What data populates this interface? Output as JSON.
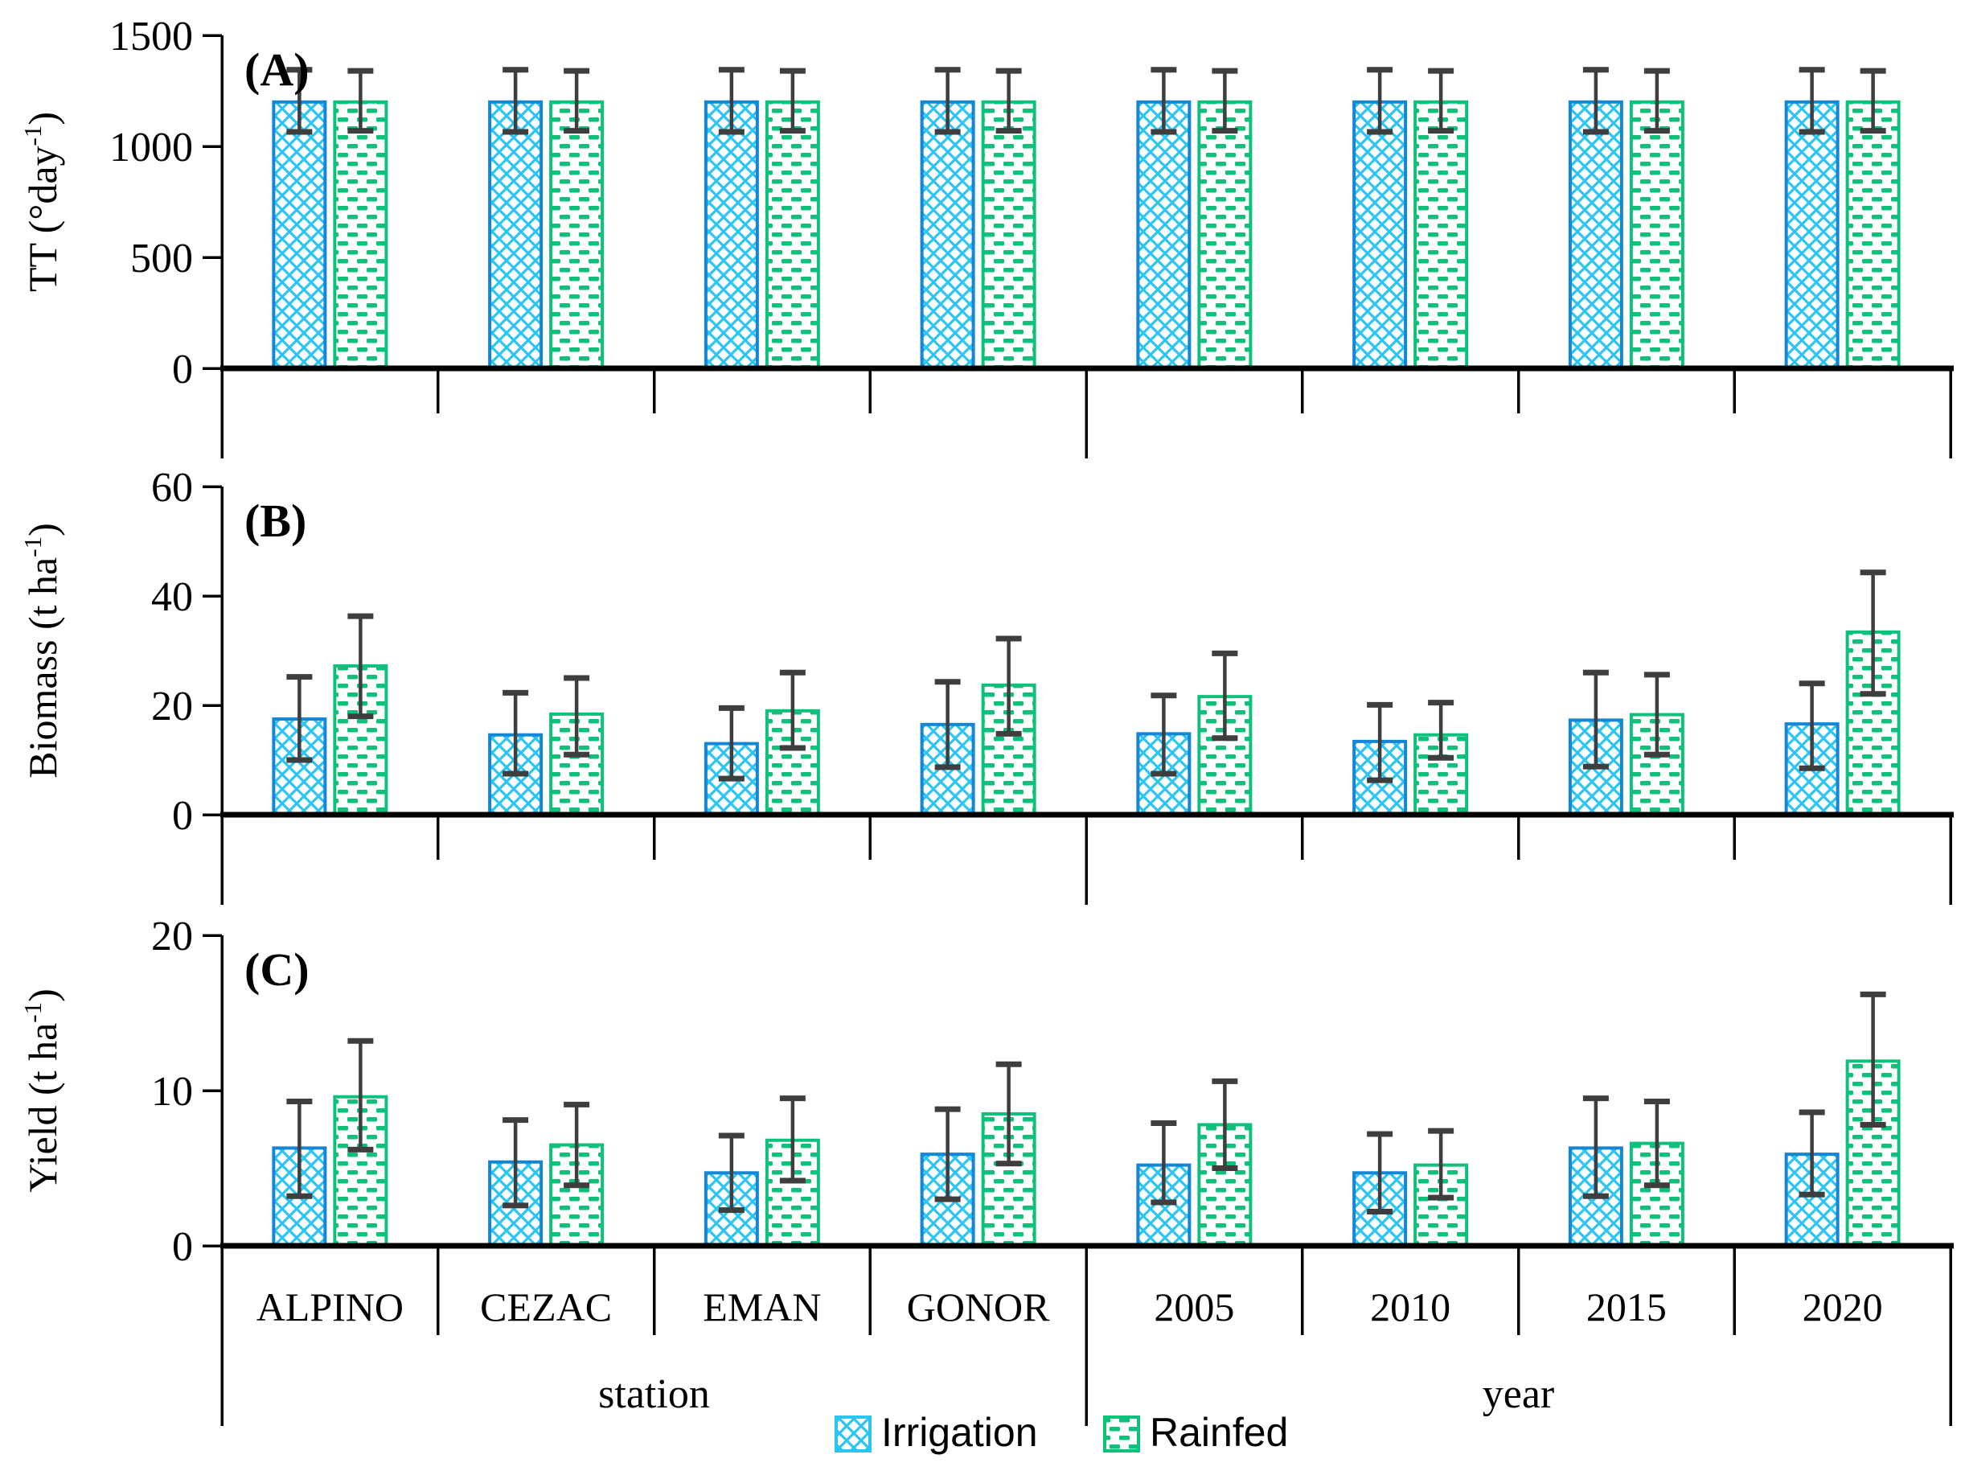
{
  "figure": {
    "background": "#ffffff",
    "axis_color": "#000000",
    "error_bar_color": "#3e3e3e",
    "legend": {
      "items": [
        {
          "key": "irrigation",
          "label": "Irrigation"
        },
        {
          "key": "rainfed",
          "label": "Rainfed"
        }
      ]
    },
    "series_styles": {
      "irrigation": {
        "pattern": "crosshatch",
        "pattern_color": "#2bc4f3",
        "border_color": "#1486d6",
        "legend_border": "#2bc4f3"
      },
      "rainfed": {
        "pattern": "brick-dash",
        "pattern_color": "#0ec17b",
        "border_color": "#0ec17b",
        "legend_border": "#0ec17b"
      }
    },
    "group_axis": {
      "groups": [
        {
          "label": "station",
          "span": [
            0,
            4
          ]
        },
        {
          "label": "year",
          "span": [
            4,
            8
          ]
        }
      ]
    }
  },
  "chart_data": [
    {
      "type": "bar",
      "panel_label": "(A)",
      "ylabel": "TT (°day⁻¹)",
      "ylim": [
        0,
        1500
      ],
      "yticks": [
        0,
        500,
        1000,
        1500
      ],
      "categories": [
        "ALPINO",
        "CEZAC",
        "EMAN",
        "GONOR",
        "2005",
        "2010",
        "2015",
        "2020"
      ],
      "series": [
        {
          "name": "Irrigation",
          "key": "irrigation",
          "values": [
            1200,
            1200,
            1200,
            1200,
            1200,
            1200,
            1200,
            1200
          ],
          "err_low": [
            1065,
            1065,
            1065,
            1065,
            1065,
            1065,
            1065,
            1065
          ],
          "err_high": [
            1345,
            1345,
            1345,
            1345,
            1345,
            1345,
            1345,
            1345
          ]
        },
        {
          "name": "Rainfed",
          "key": "rainfed",
          "values": [
            1200,
            1200,
            1200,
            1200,
            1200,
            1200,
            1200,
            1200
          ],
          "err_low": [
            1070,
            1070,
            1070,
            1070,
            1070,
            1070,
            1070,
            1070
          ],
          "err_high": [
            1340,
            1340,
            1340,
            1340,
            1340,
            1340,
            1340,
            1340
          ]
        }
      ]
    },
    {
      "type": "bar",
      "panel_label": "(B)",
      "ylabel": "Biomass (t ha⁻¹)",
      "ylim": [
        0,
        60
      ],
      "yticks": [
        0,
        20,
        40,
        60
      ],
      "categories": [
        "ALPINO",
        "CEZAC",
        "EMAN",
        "GONOR",
        "2005",
        "2010",
        "2015",
        "2020"
      ],
      "series": [
        {
          "name": "Irrigation",
          "key": "irrigation",
          "values": [
            17.5,
            14.6,
            13.0,
            16.5,
            14.8,
            13.4,
            17.3,
            16.6
          ],
          "err_low": [
            10.0,
            7.5,
            6.6,
            8.7,
            7.5,
            6.3,
            8.8,
            8.5
          ],
          "err_high": [
            25.2,
            22.3,
            19.5,
            24.3,
            21.8,
            20.1,
            26.0,
            24.0
          ]
        },
        {
          "name": "Rainfed",
          "key": "rainfed",
          "values": [
            27.2,
            18.4,
            19.0,
            23.7,
            21.6,
            14.6,
            18.3,
            33.4
          ],
          "err_low": [
            18.0,
            11.0,
            12.2,
            14.8,
            14.0,
            10.4,
            11.0,
            22.1
          ],
          "err_high": [
            36.3,
            25.0,
            26.0,
            32.2,
            29.5,
            20.5,
            25.6,
            44.3
          ]
        }
      ]
    },
    {
      "type": "bar",
      "panel_label": "(C)",
      "ylabel": "Yield (t ha⁻¹)",
      "ylim": [
        0,
        20
      ],
      "yticks": [
        0,
        10,
        20
      ],
      "categories": [
        "ALPINO",
        "CEZAC",
        "EMAN",
        "GONOR",
        "2005",
        "2010",
        "2015",
        "2020"
      ],
      "series": [
        {
          "name": "Irrigation",
          "key": "irrigation",
          "values": [
            6.3,
            5.4,
            4.7,
            5.9,
            5.2,
            4.7,
            6.3,
            5.9
          ],
          "err_low": [
            3.2,
            2.6,
            2.3,
            3.0,
            2.8,
            2.2,
            3.2,
            3.3
          ],
          "err_high": [
            9.3,
            8.1,
            7.1,
            8.8,
            7.9,
            7.2,
            9.5,
            8.6
          ]
        },
        {
          "name": "Rainfed",
          "key": "rainfed",
          "values": [
            9.6,
            6.5,
            6.8,
            8.5,
            7.8,
            5.2,
            6.6,
            11.9
          ],
          "err_low": [
            6.2,
            3.9,
            4.2,
            5.3,
            5.0,
            3.1,
            3.9,
            7.8
          ],
          "err_high": [
            13.2,
            9.1,
            9.5,
            11.7,
            10.6,
            7.4,
            9.3,
            16.2
          ]
        }
      ]
    }
  ]
}
